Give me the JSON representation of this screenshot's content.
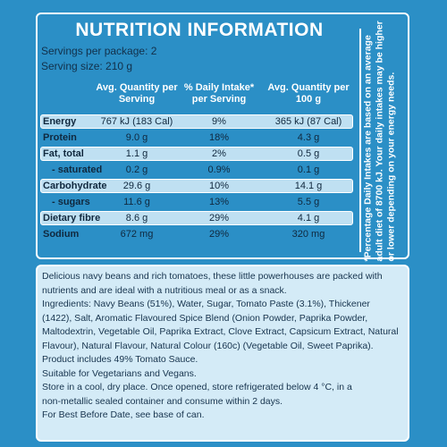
{
  "header": {
    "title": "NUTRITION INFORMATION"
  },
  "servings": {
    "per_package": "Servings per package: 2",
    "size": "Serving size: 210 g"
  },
  "table": {
    "columns": [
      "Avg. Quantity per Serving",
      "% Daily Intake* per Serving",
      "Avg. Quantity per 100 g"
    ],
    "rows": [
      [
        "Energy",
        "767 kJ (183 Cal)",
        "9%",
        "365 kJ (87 Cal)"
      ],
      [
        "Protein",
        "9.0 g",
        "18%",
        "4.3 g"
      ],
      [
        "Fat, total",
        "1.1 g",
        "2%",
        "0.5 g"
      ],
      [
        "- saturated",
        "0.2 g",
        "0.9%",
        "0.1 g"
      ],
      [
        "Carbohydrate",
        "29.6 g",
        "10%",
        "14.1 g"
      ],
      [
        "- sugars",
        "11.6 g",
        "13%",
        "5.5 g"
      ],
      [
        "Dietary fibre",
        "8.6 g",
        "29%",
        "4.1 g"
      ],
      [
        "Sodium",
        "672 mg",
        "29%",
        "320 mg"
      ]
    ]
  },
  "footnote": "*Percentage Daily Intakes are based on an average adult diet of 8700 kJ. Your daily intakes may be higher or lower depending on your energy needs.",
  "description": {
    "lines": [
      "Delicious navy beans and rich tomatoes, these little powerhouses are packed with",
      "nutrients and are ideal with a nutritious meal or as a snack.",
      "Ingredients: Navy Beans (51%), Water, Sugar, Tomato Paste (3.1%), Thickener",
      "(1422), Salt, Aromatic Flavoured Spice Blend (Onion Powder, Paprika Powder,",
      "Maltodextrin, Vegetable Oil, Paprika Extract, Clove Extract, Capsicum Extract, Natural",
      "Flavour), Natural Flavour, Natural Colour (160c) (Vegetable Oil, Sweet Paprika).",
      "Product includes 49% Tomato Sauce.",
      "Suitable for Vegetarians and Vegans.",
      "Store in a cool, dry place. Once opened, store refrigerated below 4 °C, in a",
      "non-metallic sealed container and consume within 2 days.",
      "For Best Before Date, see base of can."
    ]
  }
}
